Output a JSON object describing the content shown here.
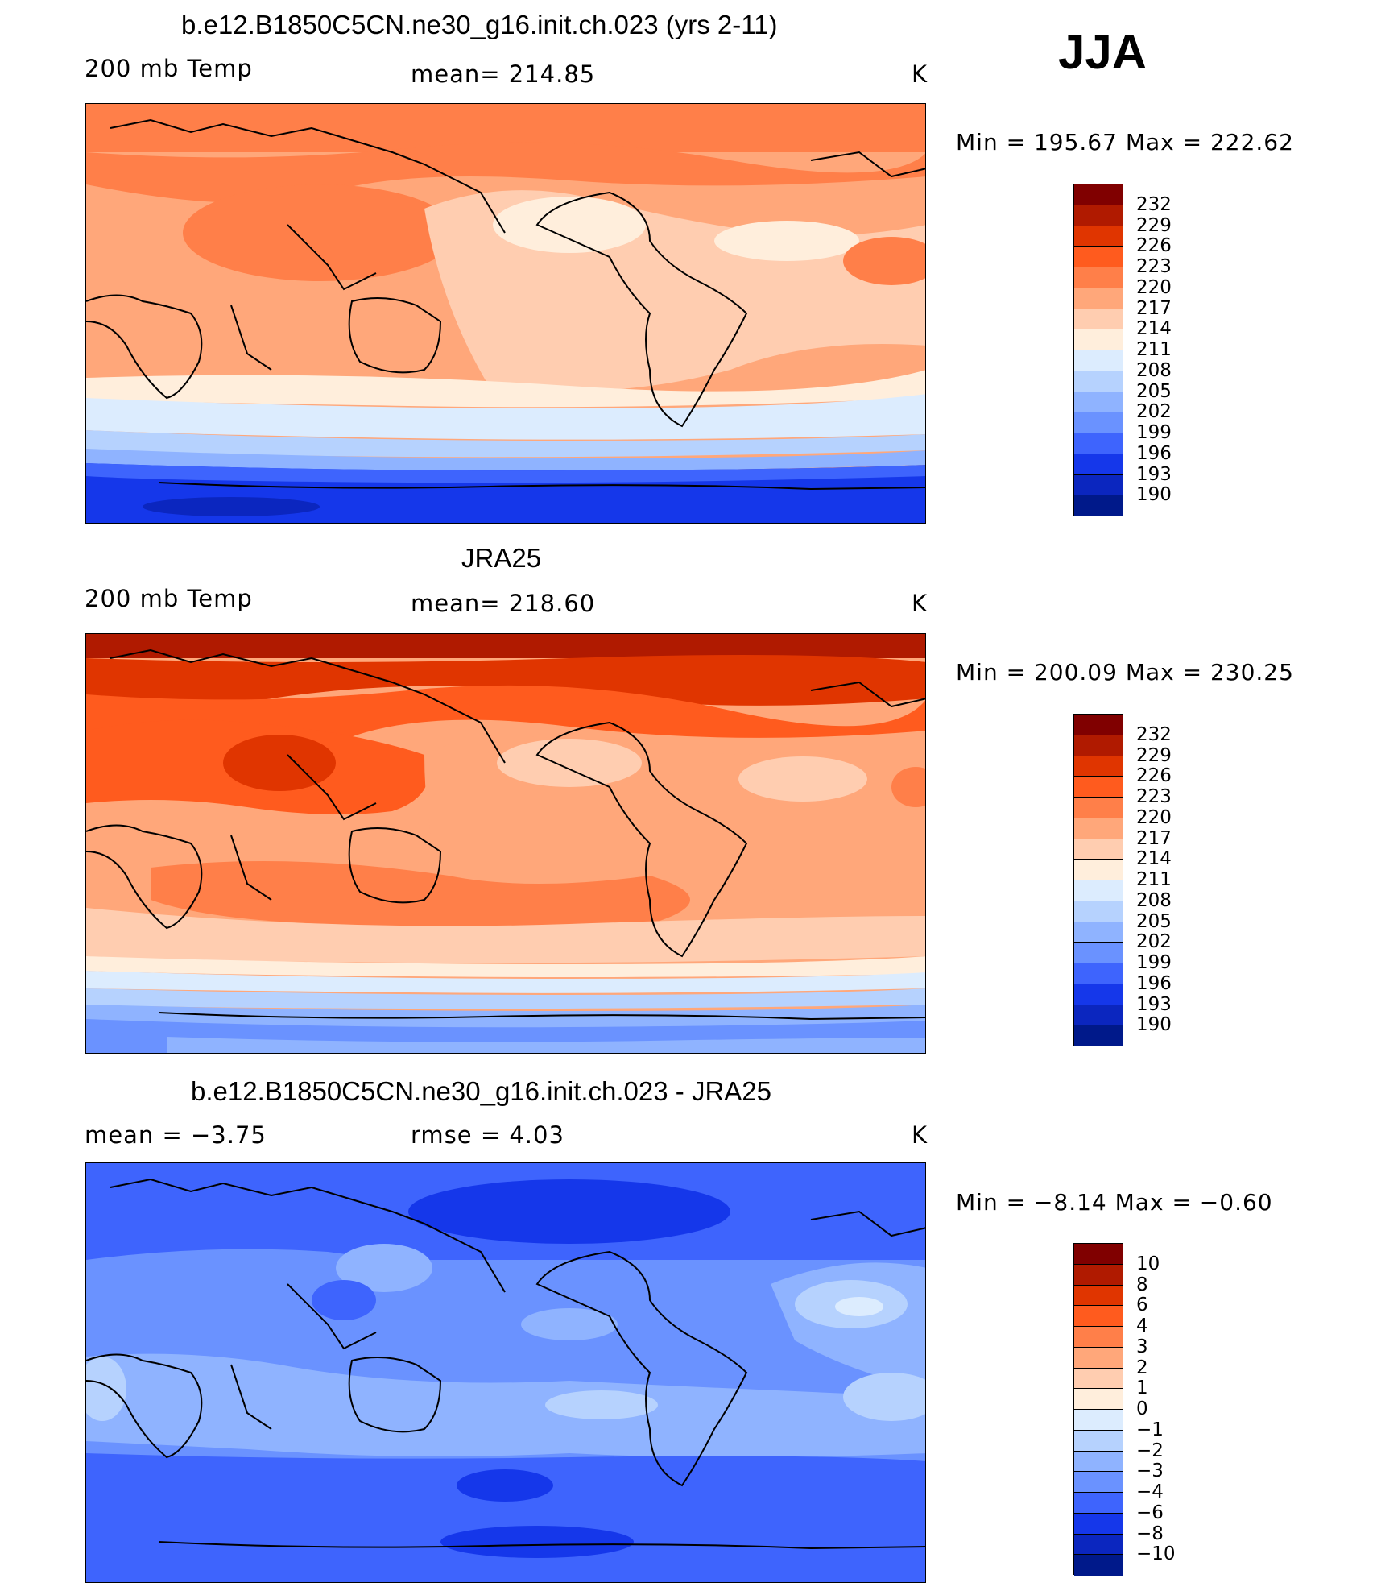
{
  "season": "JJA",
  "units": "K",
  "panels": [
    {
      "title": "b.e12.B1850C5CN.ne30_g16.init.ch.023 (yrs 2-11)",
      "left_label": "200 mb Temp",
      "center_label": "mean=  214.85",
      "right_label": "K",
      "minmax": "Min  =  195.67  Max  =  222.62",
      "colorbar_labels": [
        "232",
        "229",
        "226",
        "223",
        "220",
        "217",
        "214",
        "211",
        "208",
        "205",
        "202",
        "199",
        "196",
        "193",
        "190"
      ]
    },
    {
      "title": "JRA25",
      "left_label": "200 mb Temp",
      "center_label": "mean=  218.60",
      "right_label": "K",
      "minmax": "Min  =  200.09  Max  =  230.25",
      "colorbar_labels": [
        "232",
        "229",
        "226",
        "223",
        "220",
        "217",
        "214",
        "211",
        "208",
        "205",
        "202",
        "199",
        "196",
        "193",
        "190"
      ]
    },
    {
      "title": "b.e12.B1850C5CN.ne30_g16.init.ch.023 - JRA25",
      "left_label": "mean  =    −3.75",
      "center_label": "rmse  =     4.03",
      "right_label": "K",
      "minmax": "Min  =   −8.14  Max  =   −0.60",
      "colorbar_labels": [
        "10",
        "8",
        "6",
        "4",
        "3",
        "2",
        "1",
        "0",
        "−1",
        "−2",
        "−3",
        "−4",
        "−6",
        "−8",
        "−10"
      ]
    }
  ],
  "colorbar_colors": [
    "#800000",
    "#b01a00",
    "#e03500",
    "#ff5b1e",
    "#ff7f49",
    "#ffa77a",
    "#ffcdb0",
    "#ffeedc",
    "#dcecfe",
    "#b6d2fe",
    "#8fb3ff",
    "#6a92ff",
    "#3e64fd",
    "#1537ea",
    "#0b26bf",
    "#00198a"
  ]
}
